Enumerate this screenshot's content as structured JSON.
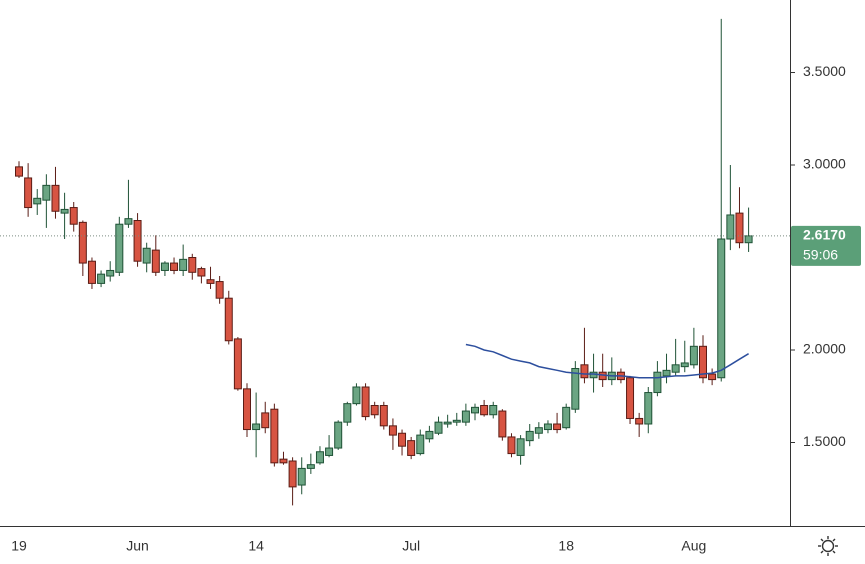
{
  "chart_data": {
    "type": "candlestick",
    "categories": [
      "19",
      null,
      null,
      null,
      null,
      null,
      null,
      null,
      null,
      null,
      null,
      null,
      null,
      "Jun",
      null,
      null,
      null,
      null,
      null,
      null,
      null,
      null,
      null,
      null,
      null,
      null,
      "14",
      null,
      null,
      null,
      null,
      null,
      null,
      null,
      null,
      null,
      null,
      null,
      null,
      null,
      null,
      null,
      null,
      "Jul",
      null,
      null,
      null,
      null,
      null,
      null,
      null,
      null,
      null,
      null,
      null,
      null,
      null,
      null,
      null,
      null,
      "18",
      null,
      null,
      null,
      null,
      null,
      null,
      null,
      null,
      null,
      null,
      null,
      null,
      null,
      "Aug",
      null,
      null,
      null,
      null,
      null,
      null
    ],
    "open": [
      2.99,
      2.93,
      2.79,
      2.81,
      2.89,
      2.74,
      2.77,
      2.69,
      2.48,
      2.36,
      2.4,
      2.42,
      2.68,
      2.7,
      2.47,
      2.54,
      2.43,
      2.47,
      2.43,
      2.5,
      2.44,
      2.38,
      2.37,
      2.28,
      2.06,
      1.79,
      1.57,
      1.66,
      1.68,
      1.41,
      1.4,
      1.27,
      1.36,
      1.39,
      1.43,
      1.47,
      1.61,
      1.71,
      1.8,
      1.7,
      1.7,
      1.59,
      1.55,
      1.51,
      1.44,
      1.52,
      1.55,
      1.6,
      1.61,
      1.61,
      1.66,
      1.7,
      1.65,
      1.67,
      1.53,
      1.43,
      1.51,
      1.55,
      1.57,
      1.6,
      1.58,
      1.68,
      1.92,
      1.85,
      1.88,
      1.84,
      1.88,
      1.85,
      1.63,
      1.6,
      1.77,
      1.86,
      1.88,
      1.91,
      1.92,
      2.02,
      1.87,
      1.85,
      2.6,
      2.74,
      2.58
    ],
    "high": [
      3.02,
      3.01,
      2.87,
      2.95,
      2.99,
      2.85,
      2.8,
      2.7,
      2.5,
      2.43,
      2.48,
      2.72,
      2.92,
      2.74,
      2.58,
      2.62,
      2.48,
      2.5,
      2.57,
      2.52,
      2.45,
      2.45,
      2.4,
      2.32,
      2.07,
      1.82,
      1.77,
      1.72,
      1.71,
      1.45,
      1.42,
      1.42,
      1.44,
      1.48,
      1.54,
      1.62,
      1.72,
      1.82,
      1.82,
      1.72,
      1.72,
      1.63,
      1.57,
      1.53,
      1.57,
      1.59,
      1.64,
      1.65,
      1.66,
      1.71,
      1.71,
      1.73,
      1.72,
      1.68,
      1.55,
      1.54,
      1.6,
      1.61,
      1.62,
      1.66,
      1.71,
      1.94,
      2.12,
      1.98,
      1.98,
      1.96,
      1.9,
      1.86,
      1.66,
      1.8,
      1.94,
      1.98,
      2.06,
      2.05,
      2.12,
      2.08,
      1.9,
      3.79,
      3.0,
      2.88,
      2.77
    ],
    "low": [
      2.93,
      2.72,
      2.73,
      2.66,
      2.71,
      2.6,
      2.64,
      2.4,
      2.33,
      2.34,
      2.37,
      2.4,
      2.66,
      2.45,
      2.42,
      2.4,
      2.4,
      2.41,
      2.4,
      2.38,
      2.36,
      2.33,
      2.25,
      2.03,
      1.78,
      1.53,
      1.42,
      1.55,
      1.37,
      1.38,
      1.16,
      1.22,
      1.33,
      1.38,
      1.42,
      1.46,
      1.59,
      1.7,
      1.62,
      1.63,
      1.57,
      1.46,
      1.43,
      1.41,
      1.43,
      1.5,
      1.54,
      1.58,
      1.59,
      1.59,
      1.62,
      1.64,
      1.63,
      1.51,
      1.42,
      1.38,
      1.48,
      1.52,
      1.55,
      1.55,
      1.57,
      1.66,
      1.82,
      1.77,
      1.8,
      1.81,
      1.82,
      1.6,
      1.53,
      1.55,
      1.75,
      1.82,
      1.86,
      1.88,
      1.9,
      1.82,
      1.81,
      1.83,
      2.54,
      2.55,
      2.53
    ],
    "close": [
      2.94,
      2.77,
      2.82,
      2.89,
      2.75,
      2.76,
      2.68,
      2.47,
      2.36,
      2.41,
      2.43,
      2.68,
      2.71,
      2.48,
      2.55,
      2.42,
      2.47,
      2.43,
      2.49,
      2.42,
      2.4,
      2.36,
      2.28,
      2.05,
      1.79,
      1.57,
      1.6,
      1.58,
      1.39,
      1.39,
      1.26,
      1.36,
      1.38,
      1.45,
      1.47,
      1.61,
      1.71,
      1.8,
      1.64,
      1.65,
      1.59,
      1.54,
      1.48,
      1.43,
      1.54,
      1.56,
      1.61,
      1.61,
      1.62,
      1.67,
      1.69,
      1.65,
      1.7,
      1.53,
      1.44,
      1.52,
      1.56,
      1.58,
      1.6,
      1.57,
      1.69,
      1.9,
      1.85,
      1.88,
      1.84,
      1.88,
      1.84,
      1.63,
      1.6,
      1.77,
      1.88,
      1.89,
      1.92,
      1.93,
      2.02,
      1.85,
      1.84,
      2.6,
      2.73,
      2.58,
      2.617
    ],
    "up_color": "#6ba583",
    "down_color": "#d75442",
    "ma": {
      "color": "#2d4f9e",
      "values": [
        null,
        null,
        null,
        null,
        null,
        null,
        null,
        null,
        null,
        null,
        null,
        null,
        null,
        null,
        null,
        null,
        null,
        null,
        null,
        null,
        null,
        null,
        null,
        null,
        null,
        null,
        null,
        null,
        null,
        null,
        null,
        null,
        null,
        null,
        null,
        null,
        null,
        null,
        null,
        null,
        null,
        null,
        null,
        null,
        null,
        null,
        null,
        null,
        null,
        2.03,
        2.02,
        2.0,
        1.99,
        1.97,
        1.95,
        1.94,
        1.93,
        1.91,
        1.9,
        1.89,
        1.88,
        1.875,
        1.87,
        1.87,
        1.865,
        1.86,
        1.86,
        1.855,
        1.85,
        1.85,
        1.85,
        1.855,
        1.86,
        1.86,
        1.865,
        1.87,
        1.875,
        1.89,
        1.92,
        1.95,
        1.98
      ]
    },
    "ylim": [
      1.054,
      3.892
    ],
    "yticks": [
      {
        "value": 1.5,
        "label": "1.5000"
      },
      {
        "value": 2,
        "label": "2.0000"
      },
      {
        "value": 3,
        "label": "3.0000"
      },
      {
        "value": 3.5,
        "label": "3.5000"
      }
    ],
    "last_price": {
      "value": 2.617,
      "label": "2.6170",
      "countdown": "59:06",
      "color": "#5b9f78"
    }
  }
}
